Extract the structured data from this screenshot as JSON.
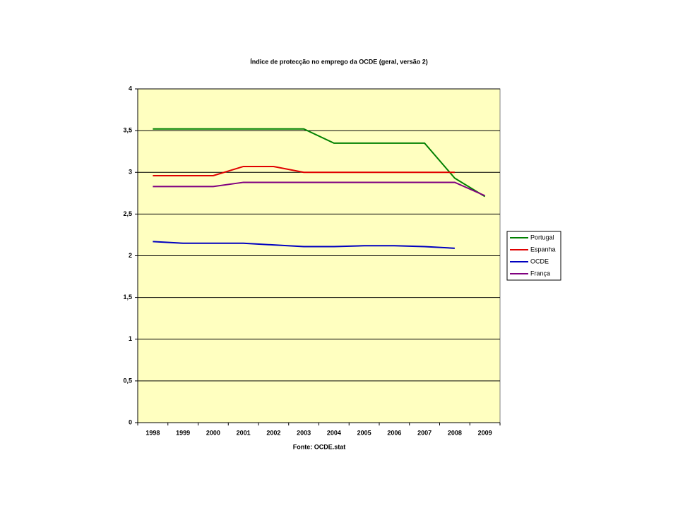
{
  "chart_data": {
    "type": "line",
    "title": "Índice de protecção no emprego da OCDE (geral, versão 2)",
    "x_label": "Fonte: OCDE.stat",
    "categories": [
      "1998",
      "1999",
      "2000",
      "2001",
      "2002",
      "2003",
      "2004",
      "2005",
      "2006",
      "2007",
      "2008",
      "2009"
    ],
    "series": [
      {
        "name": "Portugal",
        "color": "#008000",
        "values": [
          3.52,
          3.52,
          3.52,
          3.52,
          3.52,
          3.52,
          3.35,
          3.35,
          3.35,
          3.35,
          2.93,
          2.71
        ]
      },
      {
        "name": "Espanha",
        "color": "#e00000",
        "values": [
          2.96,
          2.96,
          2.96,
          3.07,
          3.07,
          3.0,
          3.0,
          3.0,
          3.0,
          3.0,
          3.0,
          null
        ]
      },
      {
        "name": "OCDE",
        "color": "#0000c0",
        "values": [
          2.17,
          2.15,
          2.15,
          2.15,
          2.13,
          2.11,
          2.11,
          2.12,
          2.12,
          2.11,
          2.09,
          null
        ]
      },
      {
        "name": "França",
        "color": "#800080",
        "values": [
          2.83,
          2.83,
          2.83,
          2.88,
          2.88,
          2.88,
          2.88,
          2.88,
          2.88,
          2.88,
          2.88,
          2.72
        ]
      }
    ],
    "ylim": [
      0,
      4
    ],
    "yticks": [
      0,
      {
        "value": 0.5,
        "label": "0,5"
      },
      1,
      {
        "value": 1.5,
        "label": "1,5"
      },
      2,
      {
        "value": 2.5,
        "label": "2,5"
      },
      3,
      {
        "value": 3.5,
        "label": "3,5"
      },
      4
    ],
    "grid": true,
    "legend": "right",
    "background": "#ffffc0"
  }
}
